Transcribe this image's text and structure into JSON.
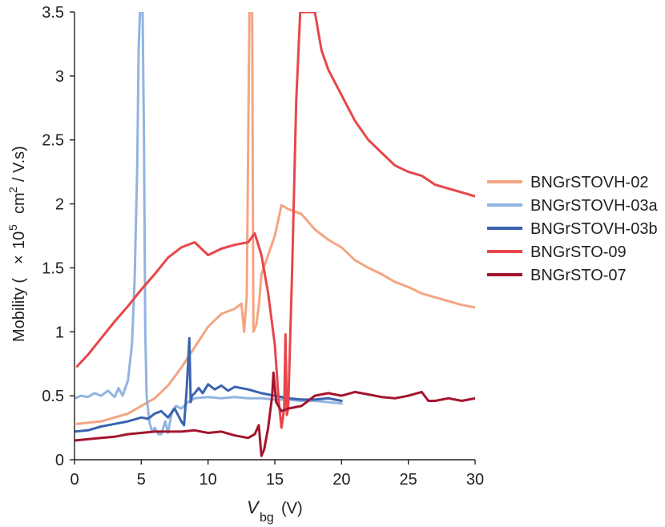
{
  "chart_data": {
    "type": "line",
    "xlabel": {
      "main": "V",
      "sub": "bg",
      "unit": "(V)"
    },
    "ylabel": {
      "main": "Mobility (",
      "times": "×",
      "ten": "10",
      "exp": "5",
      "unit": "cm",
      "unit_exp": "2",
      "tail": "/ V.s)"
    },
    "xlim": [
      0,
      30
    ],
    "ylim": [
      0,
      3.5
    ],
    "xticks": [
      0,
      5,
      10,
      15,
      20,
      25,
      30
    ],
    "yticks": [
      0,
      0.5,
      1,
      1.5,
      2,
      2.5,
      3,
      3.5
    ],
    "xtick_labels": [
      "0",
      "5",
      "10",
      "15",
      "20",
      "25",
      "30"
    ],
    "ytick_labels": [
      "0",
      "0.5",
      "1",
      "1.5",
      "2",
      "2.5",
      "3",
      "3.5"
    ],
    "grid": false,
    "legend_position": "right",
    "series": [
      {
        "name": "BNGrSTOVH-02",
        "color": "#f4a582",
        "x": [
          0.2,
          1,
          2,
          3,
          4,
          5,
          6,
          7,
          8,
          9,
          10,
          11,
          12,
          12.5,
          12.7,
          12.9,
          13.1,
          13.2,
          13.3,
          13.4,
          13.6,
          13.8,
          14,
          14.5,
          15,
          15.5,
          16,
          17,
          18,
          19,
          20,
          21,
          22,
          23,
          24,
          25,
          26,
          27,
          28,
          29,
          30
        ],
        "y": [
          0.28,
          0.29,
          0.3,
          0.33,
          0.36,
          0.42,
          0.48,
          0.58,
          0.72,
          0.88,
          1.04,
          1.14,
          1.18,
          1.22,
          1.0,
          1.28,
          3.5,
          3.5,
          3.5,
          1.0,
          1.05,
          1.2,
          1.45,
          1.6,
          1.75,
          1.99,
          1.96,
          1.92,
          1.8,
          1.72,
          1.66,
          1.56,
          1.5,
          1.45,
          1.39,
          1.35,
          1.3,
          1.27,
          1.24,
          1.21,
          1.19
        ]
      },
      {
        "name": "BNGrSTOVH-03a",
        "color": "#92b4e0",
        "x": [
          0,
          0.5,
          1,
          1.5,
          2,
          2.5,
          3,
          3.3,
          3.6,
          4,
          4.3,
          4.5,
          4.7,
          4.8,
          4.9,
          5.0,
          5.1,
          5.2,
          5.3,
          5.4,
          5.6,
          5.8,
          6,
          6.3,
          6.5,
          6.8,
          7,
          7.3,
          7.6,
          8,
          8.5,
          9,
          10,
          11,
          12,
          13,
          14,
          15,
          16,
          17,
          18,
          19,
          20
        ],
        "y": [
          0.48,
          0.5,
          0.49,
          0.52,
          0.5,
          0.54,
          0.49,
          0.56,
          0.5,
          0.62,
          0.9,
          1.4,
          2.3,
          3.2,
          3.5,
          3.5,
          3.5,
          2.5,
          1.0,
          0.5,
          0.3,
          0.22,
          0.25,
          0.2,
          0.2,
          0.3,
          0.21,
          0.38,
          0.42,
          0.4,
          0.45,
          0.48,
          0.49,
          0.48,
          0.49,
          0.48,
          0.48,
          0.47,
          0.47,
          0.46,
          0.46,
          0.45,
          0.44
        ]
      },
      {
        "name": "BNGrSTOVH-03b",
        "color": "#3b63b0",
        "x": [
          0,
          1,
          2,
          3,
          4,
          5,
          5.5,
          6,
          6.5,
          7,
          7.5,
          8,
          8.2,
          8.4,
          8.5,
          8.6,
          8.7,
          8.8,
          9,
          9.3,
          9.6,
          10,
          10.5,
          11,
          11.5,
          12,
          13,
          14,
          15,
          16,
          17,
          18,
          19,
          20
        ],
        "y": [
          0.22,
          0.23,
          0.26,
          0.28,
          0.3,
          0.33,
          0.32,
          0.36,
          0.38,
          0.33,
          0.4,
          0.3,
          0.27,
          0.55,
          0.75,
          0.95,
          0.45,
          0.5,
          0.52,
          0.56,
          0.52,
          0.59,
          0.55,
          0.58,
          0.54,
          0.57,
          0.55,
          0.52,
          0.5,
          0.48,
          0.47,
          0.47,
          0.48,
          0.46
        ]
      },
      {
        "name": "BNGrSTO-09",
        "color": "#e8464a",
        "x": [
          0.2,
          1,
          2,
          3,
          4,
          5,
          6,
          7,
          8,
          9,
          10,
          11,
          12,
          13,
          13.5,
          14,
          14.5,
          15,
          15.3,
          15.5,
          15.7,
          15.8,
          15.9,
          16.0,
          16.3,
          16.6,
          16.9,
          17.2,
          18,
          18.5,
          19,
          20,
          21,
          22,
          23,
          24,
          25,
          26,
          27,
          28,
          29,
          30
        ],
        "y": [
          0.73,
          0.82,
          0.95,
          1.08,
          1.2,
          1.33,
          1.45,
          1.58,
          1.66,
          1.7,
          1.6,
          1.65,
          1.68,
          1.7,
          1.77,
          1.6,
          1.3,
          0.9,
          0.45,
          0.25,
          0.4,
          0.98,
          0.35,
          0.4,
          1.5,
          2.8,
          3.5,
          3.5,
          3.5,
          3.2,
          3.05,
          2.85,
          2.65,
          2.5,
          2.4,
          2.3,
          2.25,
          2.22,
          2.15,
          2.12,
          2.09,
          2.06
        ]
      },
      {
        "name": "BNGrSTO-07",
        "color": "#a3152e",
        "x": [
          0,
          1,
          2,
          3,
          4,
          5,
          6,
          7,
          8,
          9,
          10,
          11,
          12,
          13,
          13.5,
          13.8,
          14,
          14.2,
          14.5,
          14.8,
          14.9,
          15.1,
          15.5,
          16,
          17,
          18,
          19,
          20,
          21,
          22,
          23,
          24,
          25,
          26,
          26.5,
          27,
          28,
          29,
          30
        ],
        "y": [
          0.15,
          0.16,
          0.17,
          0.18,
          0.2,
          0.21,
          0.22,
          0.22,
          0.22,
          0.23,
          0.21,
          0.22,
          0.19,
          0.17,
          0.2,
          0.27,
          0.03,
          0.08,
          0.25,
          0.5,
          0.68,
          0.45,
          0.38,
          0.4,
          0.42,
          0.5,
          0.52,
          0.5,
          0.53,
          0.51,
          0.49,
          0.48,
          0.5,
          0.53,
          0.46,
          0.46,
          0.48,
          0.46,
          0.48
        ]
      }
    ]
  }
}
